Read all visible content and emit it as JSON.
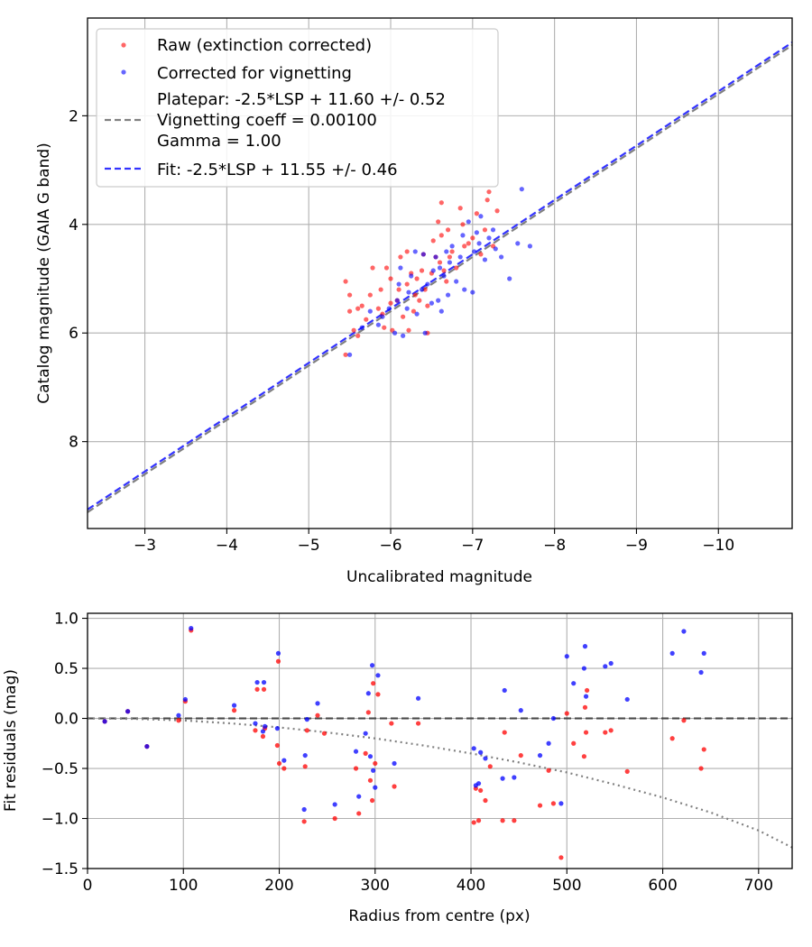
{
  "chart_data": [
    {
      "type": "scatter",
      "xlabel": "Uncalibrated magnitude",
      "ylabel": "Catalog magnitude (GAIA G band)",
      "xlim": [
        -2.3,
        -10.9
      ],
      "ylim": [
        9.6,
        0.2
      ],
      "x_ticks": [
        -3,
        -4,
        -5,
        -6,
        -7,
        -8,
        -9,
        -10
      ],
      "x_tick_labels": [
        "−3",
        "−4",
        "−5",
        "−6",
        "−7",
        "−8",
        "−9",
        "−10"
      ],
      "y_ticks": [
        2,
        4,
        6,
        8
      ],
      "y_tick_labels": [
        "2",
        "4",
        "6",
        "8"
      ],
      "grid": true,
      "legend_position": "top-left",
      "series": [
        {
          "name": "Raw (extinction corrected)",
          "kind": "scatter",
          "color": "#ff0000",
          "points": [
            [
              -5.45,
              5.05
            ],
            [
              -5.5,
              5.3
            ],
            [
              -5.5,
              5.6
            ],
            [
              -5.55,
              5.95
            ],
            [
              -5.6,
              5.55
            ],
            [
              -5.6,
              6.05
            ],
            [
              -5.65,
              5.5
            ],
            [
              -5.7,
              5.75
            ],
            [
              -5.75,
              5.3
            ],
            [
              -5.78,
              4.8
            ],
            [
              -5.85,
              5.55
            ],
            [
              -5.88,
              5.2
            ],
            [
              -5.9,
              5.65
            ],
            [
              -5.92,
              5.9
            ],
            [
              -5.95,
              4.8
            ],
            [
              -6.0,
              5.0
            ],
            [
              -6.0,
              5.45
            ],
            [
              -6.02,
              5.95
            ],
            [
              -6.08,
              5.4
            ],
            [
              -6.1,
              5.2
            ],
            [
              -6.12,
              4.6
            ],
            [
              -6.15,
              5.7
            ],
            [
              -6.2,
              4.5
            ],
            [
              -6.2,
              5.1
            ],
            [
              -6.22,
              5.95
            ],
            [
              -6.25,
              4.9
            ],
            [
              -6.28,
              5.6
            ],
            [
              -6.3,
              5.3
            ],
            [
              -6.32,
              5.0
            ],
            [
              -6.35,
              5.4
            ],
            [
              -6.38,
              4.85
            ],
            [
              -6.4,
              4.55
            ],
            [
              -6.42,
              5.2
            ],
            [
              -6.45,
              5.5
            ],
            [
              -6.45,
              6.0
            ],
            [
              -6.5,
              4.9
            ],
            [
              -6.52,
              4.3
            ],
            [
              -6.55,
              4.6
            ],
            [
              -6.58,
              3.95
            ],
            [
              -6.6,
              4.7
            ],
            [
              -6.62,
              3.6
            ],
            [
              -6.62,
              4.2
            ],
            [
              -6.65,
              4.85
            ],
            [
              -6.68,
              5.05
            ],
            [
              -6.7,
              4.1
            ],
            [
              -6.72,
              4.6
            ],
            [
              -6.75,
              4.5
            ],
            [
              -6.8,
              4.8
            ],
            [
              -6.85,
              3.7
            ],
            [
              -6.88,
              4.0
            ],
            [
              -6.9,
              4.4
            ],
            [
              -6.95,
              4.35
            ],
            [
              -7.0,
              4.25
            ],
            [
              -7.05,
              3.8
            ],
            [
              -7.1,
              4.55
            ],
            [
              -7.15,
              4.1
            ],
            [
              -7.18,
              3.55
            ],
            [
              -7.2,
              3.4
            ],
            [
              -7.25,
              4.4
            ],
            [
              -7.3,
              3.75
            ],
            [
              -5.45,
              6.4
            ]
          ]
        },
        {
          "name": "Corrected for vignetting",
          "kind": "scatter",
          "color": "#0000ff",
          "points": [
            [
              -5.5,
              6.4
            ],
            [
              -5.65,
              5.9
            ],
            [
              -5.75,
              5.6
            ],
            [
              -5.85,
              5.85
            ],
            [
              -5.9,
              5.7
            ],
            [
              -5.98,
              5.55
            ],
            [
              -6.05,
              6.0
            ],
            [
              -6.08,
              5.4
            ],
            [
              -6.1,
              5.1
            ],
            [
              -6.12,
              4.8
            ],
            [
              -6.15,
              6.05
            ],
            [
              -6.2,
              5.55
            ],
            [
              -6.22,
              5.25
            ],
            [
              -6.25,
              4.95
            ],
            [
              -6.3,
              4.5
            ],
            [
              -6.32,
              5.65
            ],
            [
              -6.38,
              5.2
            ],
            [
              -6.4,
              4.55
            ],
            [
              -6.42,
              6.0
            ],
            [
              -6.45,
              5.1
            ],
            [
              -6.5,
              5.45
            ],
            [
              -6.52,
              4.85
            ],
            [
              -6.55,
              4.6
            ],
            [
              -6.58,
              5.4
            ],
            [
              -6.6,
              4.8
            ],
            [
              -6.62,
              5.6
            ],
            [
              -6.65,
              4.95
            ],
            [
              -6.68,
              4.5
            ],
            [
              -6.7,
              5.3
            ],
            [
              -6.72,
              4.7
            ],
            [
              -6.75,
              4.4
            ],
            [
              -6.8,
              5.05
            ],
            [
              -6.85,
              4.6
            ],
            [
              -6.88,
              4.2
            ],
            [
              -6.9,
              5.2
            ],
            [
              -6.95,
              3.95
            ],
            [
              -7.0,
              5.25
            ],
            [
              -7.02,
              4.5
            ],
            [
              -7.05,
              4.15
            ],
            [
              -7.08,
              4.35
            ],
            [
              -7.1,
              3.85
            ],
            [
              -7.15,
              4.65
            ],
            [
              -7.2,
              4.25
            ],
            [
              -7.25,
              4.1
            ],
            [
              -7.28,
              4.45
            ],
            [
              -7.45,
              5.0
            ],
            [
              -7.55,
              4.35
            ],
            [
              -7.6,
              3.35
            ],
            [
              -7.7,
              4.4
            ],
            [
              -7.35,
              4.6
            ]
          ]
        },
        {
          "name": "Platepar: -2.5*LSP + 11.60 +/- 0.52\nVignetting coeff = 0.00100\nGamma = 1.00",
          "kind": "line",
          "style": "dashed",
          "color": "#808080",
          "x": [
            -2.3,
            -10.9
          ],
          "y": [
            9.3,
            0.7
          ]
        },
        {
          "name": "Fit: -2.5*LSP + 11.55 +/- 0.46",
          "kind": "line",
          "style": "dashed",
          "color": "#3333ff",
          "x": [
            -2.3,
            -10.9
          ],
          "y": [
            9.25,
            0.65
          ]
        }
      ]
    },
    {
      "type": "scatter",
      "xlabel": "Radius from centre (px)",
      "ylabel": "Fit residuals (mag)",
      "xlim": [
        0,
        735
      ],
      "ylim": [
        -1.5,
        1.05
      ],
      "x_ticks": [
        0,
        100,
        200,
        300,
        400,
        500,
        600,
        700
      ],
      "x_tick_labels": [
        "0",
        "100",
        "200",
        "300",
        "400",
        "500",
        "600",
        "700"
      ],
      "y_ticks": [
        1.0,
        0.5,
        0.0,
        -0.5,
        -1.0,
        -1.5
      ],
      "y_tick_labels": [
        "1.0",
        "0.5",
        "0.0",
        "−0.5",
        "−1.0",
        "−1.5"
      ],
      "grid": true,
      "series": [
        {
          "name": "raw-residuals",
          "kind": "scatter",
          "color": "#ff0000",
          "points": [
            [
              18,
              -0.03
            ],
            [
              42,
              0.07
            ],
            [
              62,
              -0.28
            ],
            [
              95,
              -0.02
            ],
            [
              102,
              0.17
            ],
            [
              108,
              0.88
            ],
            [
              153,
              0.08
            ],
            [
              175,
              -0.12
            ],
            [
              177,
              0.29
            ],
            [
              183,
              -0.18
            ],
            [
              184,
              0.29
            ],
            [
              185,
              -0.1
            ],
            [
              198,
              -0.27
            ],
            [
              199,
              0.57
            ],
            [
              205,
              -0.5
            ],
            [
              226,
              -1.03
            ],
            [
              227,
              -0.48
            ],
            [
              229,
              -0.12
            ],
            [
              240,
              0.03
            ],
            [
              247,
              -0.15
            ],
            [
              258,
              -1.0
            ],
            [
              280,
              -0.5
            ],
            [
              283,
              -0.95
            ],
            [
              290,
              -0.35
            ],
            [
              293,
              0.06
            ],
            [
              295,
              -0.62
            ],
            [
              297,
              -0.82
            ],
            [
              298,
              0.35
            ],
            [
              300,
              -0.45
            ],
            [
              303,
              0.24
            ],
            [
              317,
              -0.05
            ],
            [
              320,
              -0.68
            ],
            [
              345,
              -0.05
            ],
            [
              403,
              -1.04
            ],
            [
              405,
              -0.7
            ],
            [
              408,
              -1.02
            ],
            [
              410,
              -0.72
            ],
            [
              415,
              -0.82
            ],
            [
              420,
              -0.48
            ],
            [
              433,
              -1.02
            ],
            [
              435,
              -0.14
            ],
            [
              445,
              -1.02
            ],
            [
              452,
              -0.37
            ],
            [
              472,
              -0.87
            ],
            [
              481,
              -0.52
            ],
            [
              486,
              -0.85
            ],
            [
              494,
              -1.39
            ],
            [
              500,
              0.05
            ],
            [
              507,
              -0.25
            ],
            [
              518,
              -0.38
            ],
            [
              519,
              0.11
            ],
            [
              520,
              -0.14
            ],
            [
              521,
              0.28
            ],
            [
              540,
              -0.14
            ],
            [
              546,
              -0.12
            ],
            [
              563,
              -0.53
            ],
            [
              610,
              -0.2
            ],
            [
              622,
              -0.02
            ],
            [
              640,
              -0.5
            ],
            [
              643,
              -0.31
            ],
            [
              200,
              -0.45
            ]
          ]
        },
        {
          "name": "corrected-residuals",
          "kind": "scatter",
          "color": "#0000ff",
          "points": [
            [
              18,
              -0.03
            ],
            [
              42,
              0.07
            ],
            [
              62,
              -0.28
            ],
            [
              95,
              0.03
            ],
            [
              102,
              0.19
            ],
            [
              108,
              0.9
            ],
            [
              153,
              0.13
            ],
            [
              175,
              -0.05
            ],
            [
              177,
              0.36
            ],
            [
              183,
              -0.13
            ],
            [
              184,
              0.36
            ],
            [
              185,
              -0.08
            ],
            [
              198,
              -0.1
            ],
            [
              199,
              0.65
            ],
            [
              205,
              -0.42
            ],
            [
              226,
              -0.91
            ],
            [
              227,
              -0.37
            ],
            [
              229,
              -0.01
            ],
            [
              240,
              0.15
            ],
            [
              258,
              -0.86
            ],
            [
              280,
              -0.33
            ],
            [
              283,
              -0.78
            ],
            [
              290,
              -0.15
            ],
            [
              293,
              0.25
            ],
            [
              295,
              -0.38
            ],
            [
              297,
              0.53
            ],
            [
              298,
              -0.52
            ],
            [
              300,
              -0.69
            ],
            [
              303,
              0.43
            ],
            [
              320,
              -0.45
            ],
            [
              345,
              0.2
            ],
            [
              403,
              -0.3
            ],
            [
              405,
              -0.67
            ],
            [
              408,
              -0.65
            ],
            [
              410,
              -0.34
            ],
            [
              415,
              -0.4
            ],
            [
              433,
              -0.6
            ],
            [
              435,
              0.28
            ],
            [
              445,
              -0.59
            ],
            [
              452,
              0.08
            ],
            [
              472,
              -0.37
            ],
            [
              481,
              -0.25
            ],
            [
              486,
              0.0
            ],
            [
              494,
              -0.85
            ],
            [
              500,
              0.62
            ],
            [
              507,
              0.35
            ],
            [
              518,
              0.5
            ],
            [
              519,
              0.72
            ],
            [
              520,
              0.22
            ],
            [
              540,
              0.52
            ],
            [
              546,
              0.55
            ],
            [
              563,
              0.19
            ],
            [
              610,
              0.65
            ],
            [
              622,
              0.87
            ],
            [
              640,
              0.46
            ],
            [
              643,
              0.65
            ]
          ]
        },
        {
          "name": "zero-line",
          "kind": "line",
          "style": "dashed",
          "color": "#000000",
          "x": [
            0,
            735
          ],
          "y": [
            0,
            0
          ]
        },
        {
          "name": "vignetting-curve",
          "kind": "curve",
          "style": "dotted",
          "color": "#808080",
          "x": [
            0,
            50,
            100,
            150,
            200,
            250,
            300,
            350,
            400,
            450,
            500,
            550,
            600,
            650,
            700,
            735
          ],
          "y": [
            0.0,
            -0.005,
            -0.02,
            -0.05,
            -0.09,
            -0.14,
            -0.2,
            -0.27,
            -0.35,
            -0.44,
            -0.54,
            -0.66,
            -0.79,
            -0.94,
            -1.12,
            -1.29
          ]
        }
      ]
    }
  ]
}
